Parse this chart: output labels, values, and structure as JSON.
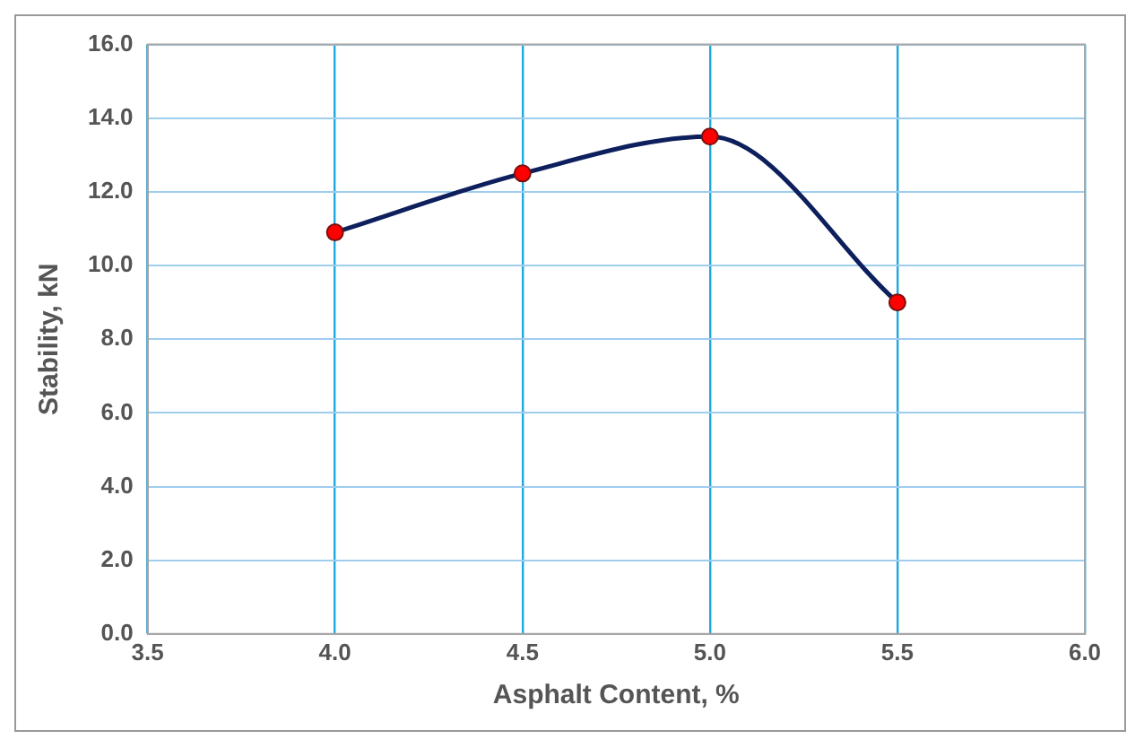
{
  "chart_data": {
    "type": "line",
    "xlabel": "Asphalt Content, %",
    "ylabel": "Stability, kN",
    "x": [
      4.0,
      4.5,
      5.0,
      5.5
    ],
    "series": [
      {
        "color": "#0d1f5c",
        "values": [
          10.9,
          12.5,
          13.5,
          9.0
        ]
      }
    ],
    "xlim": [
      3.5,
      6.0
    ],
    "xticks": [
      {
        "value": 3.5,
        "label": "3.5"
      },
      {
        "value": 4.0,
        "label": "4.0"
      },
      {
        "value": 4.5,
        "label": "4.5"
      },
      {
        "value": 5.0,
        "label": "5.0"
      },
      {
        "value": 5.5,
        "label": "5.5"
      },
      {
        "value": 6.0,
        "label": "6.0"
      }
    ],
    "ylim": [
      0,
      16
    ],
    "yticks": [
      {
        "value": 0,
        "label": "0.0"
      },
      {
        "value": 2,
        "label": "2.0"
      },
      {
        "value": 4,
        "label": "4.0"
      },
      {
        "value": 6,
        "label": "6.0"
      },
      {
        "value": 8,
        "label": "8.0"
      },
      {
        "value": 10,
        "label": "10.0"
      },
      {
        "value": 12,
        "label": "12.0"
      },
      {
        "value": 14,
        "label": "14.0"
      },
      {
        "value": 16,
        "label": "16.0"
      }
    ],
    "grid": true,
    "marker": "circle",
    "line_style": "solid",
    "legend": false
  }
}
